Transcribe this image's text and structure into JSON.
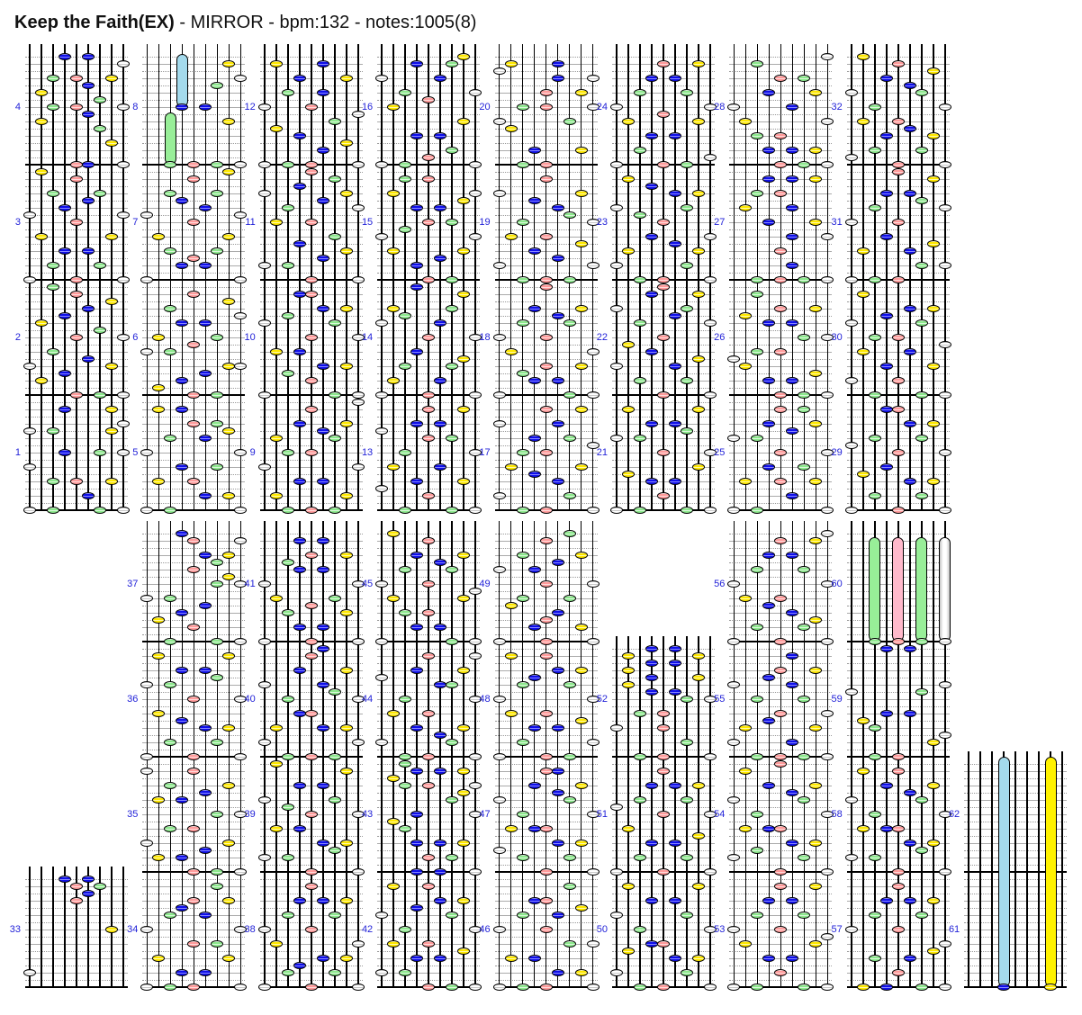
{
  "title": {
    "song": "Keep the Faith(EX)",
    "rest": " - MIRROR - bpm:132 - notes:1005(8)"
  },
  "stats": {
    "mode": "MIRROR",
    "bpm": "132",
    "total_notes": "1005",
    "long_notes": "8"
  },
  "palette": {
    "note_blue": "#1010e8",
    "note_green": "#8de88d",
    "note_red": "#ff9c9c",
    "note_yellow": "#ffe800",
    "note_white": "#ffffff",
    "hold_blue": "#a4daec",
    "hold_green": "#98ee98",
    "hold_red": "#ffb9cb",
    "hold_yellow": "#fff200",
    "hold_white": "#f4f4f4",
    "measure_label_blue": "#2222d8",
    "grid_gray": "#ababab",
    "grid_dot": "#9a9a9a"
  },
  "lane_colors": {
    "1": "white",
    "2": "yellow",
    "3": "green",
    "4": "blue",
    "5": "red",
    "6": "blue",
    "7": "green",
    "8": "yellow",
    "9": "white"
  },
  "charts": [
    {
      "slot": 0,
      "half": "top",
      "measures": [
        {
          "n": 1,
          "notes": "1:0 3:0 7:0 9:0 6:2 3:4 5:4 8:4 1:6 4:8 7:8 9:8 1:11 3:11 8:11 9:12 4:14 8:14"
        },
        {
          "n": 2,
          "notes": "5:0 7:0 9:0 2:2 4:3 1:4 8:4 6:5 3:6 5:8 9:8 7:9 2:10 4:11 6:12 8:13 5:14 3:15"
        },
        {
          "n": 3,
          "notes": "1:0 5:0 9:0 3:2 7:2 4:4 6:4 2:6 8:6 5:8 1:9 9:9 4:10 6:11 3:12 7:12 5:14 2:15"
        },
        {
          "n": 4,
          "notes": "5:0 6:0 9:0 8:3 7:5 2:6 6:7 3:8 5:8 9:8 7:9 2:10 6:11 3:12 5:12 8:12 9:14 4:15 6:15"
        }
      ]
    },
    {
      "slot": 1,
      "half": "top",
      "measures": [
        {
          "n": 5,
          "notes": "1:0 3:0 9:0 6:2 8:2 2:4 5:4 4:6 7:6 1:8 9:8 3:10 6:10 8:11 5:12 7:12 2:14 4:14"
        },
        {
          "n": 6,
          "notes": "5:0 7:0 2:1 4:2 6:3 8:4 9:4 1:6 3:6 5:7 2:8 7:8 4:10 6:10 9:11 3:12 8:13 5:14"
        },
        {
          "n": 7,
          "notes": "1:0 9:0 4:2 6:2 5:3 3:4 7:4 2:6 8:6 5:8 1:9 9:9 6:10 4:11 3:12 7:12 5:14 8:15"
        },
        {
          "n": 8,
          "notes": "5:0 7:0 9:0 8:6 6:8 7:11 9:12 8:14"
        }
      ]
    },
    {
      "slot": 2,
      "half": "top",
      "measures": [
        {
          "n": 9,
          "notes": "3:0 5:0 7:0 2:2 8:2 4:4 6:4 1:6 9:6 3:8 5:8 2:10 7:10 6:11 4:12 8:12 5:14 9:15"
        },
        {
          "n": 10,
          "notes": "1:0 7:0 9:0 5:2 3:3 6:4 8:4 2:6 4:6 5:8 9:8 1:10 7:10 3:11 6:12 8:12 4:14 5:14"
        },
        {
          "n": 11,
          "notes": "5:0 9:0 1:2 3:2 6:3 8:4 4:5 7:6 2:8 5:8 3:10 9:10 6:11 1:12 8:12 4:13 7:14 5:15"
        },
        {
          "n": 12,
          "notes": "1:0 3:0 5:0 9:0 6:2 8:3 4:4 2:5 7:6 9:7 1:8 5:8 3:10 6:10 4:12 8:12 2:14 6:14"
        }
      ]
    },
    {
      "slot": 3,
      "half": "top",
      "measures": [
        {
          "n": 13,
          "notes": "3:0 7:0 9:0 5:2 1:3 4:4 8:4 2:6 6:6 3:8 9:8 5:10 7:10 1:11 4:12 6:12 5:14 8:14"
        },
        {
          "n": 14,
          "notes": "1:0 5:0 9:0 2:2 6:2 3:4 7:4 8:5 4:6 5:8 9:8 1:10 6:10 3:11 2:12 7:12 8:14 4:15"
        },
        {
          "n": 15,
          "notes": "5:0 7:0 4:2 6:3 2:4 8:4 1:6 9:6 3:7 5:8 7:8 4:10 6:10 8:11 2:12 9:12 3:14 5:14"
        },
        {
          "n": 16,
          "notes": "1:0 3:0 9:0 5:1 7:2 4:4 6:4 8:6 2:8 5:9 3:10 9:10 1:12 6:12 4:14 7:14 8:15"
        }
      ]
    },
    {
      "slot": 4,
      "half": "top",
      "measures": [
        {
          "n": 17,
          "notes": "3:0 5:0 9:0 1:2 7:2 6:4 4:5 2:6 8:6 3:8 5:8 9:9 4:10 7:10 1:12 6:12 5:14 8:14"
        },
        {
          "n": 18,
          "notes": "1:0 7:0 9:0 4:2 6:2 3:3 5:4 8:4 2:6 9:6 1:8 5:8 3:10 7:10 6:11 4:12 8:12 5:15"
        },
        {
          "n": 19,
          "notes": "3:0 5:0 7:0 1:2 9:2 6:3 4:4 8:5 2:6 5:6 3:8 9:8 7:9 6:10 4:11 1:12 8:12 5:14"
        },
        {
          "n": 20,
          "notes": "3:0 5:0 4:2 8:2 2:5 1:6 7:6 3:8 5:8 9:8 8:10 5:10 6:12 9:12 1:13 2:14 6:14"
        }
      ]
    },
    {
      "slot": 5,
      "half": "top",
      "measures": [
        {
          "n": 21,
          "notes": "1:0 3:0 7:0 9:0 5:2 4:4 6:4 2:5 8:6 5:8 9:8 1:10 3:10 7:11 4:12 6:12 2:14 8:14"
        },
        {
          "n": 22,
          "notes": "5:0 9:0 3:2 7:2 1:4 6:4 8:5 4:6 2:7 5:8 3:10 9:10 6:11 1:12 7:12 4:14 8:14 5:15"
        },
        {
          "n": 23,
          "notes": "3:0 5:0 9:0 1:2 7:2 2:4 8:4 6:5 4:6 9:6 5:8 3:9 1:10 7:10 6:12 8:12 4:13 2:14"
        },
        {
          "n": 24,
          "notes": "1:0 5:0 7:0 9:1 3:2 4:4 6:4 2:6 8:6 5:7 1:8 9:8 3:10 7:10 4:12 6:12 5:14 8:14"
        }
      ]
    },
    {
      "slot": 6,
      "half": "top",
      "measures": [
        {
          "n": 25,
          "notes": "1:0 3:0 9:0 6:2 2:4 5:4 8:4 4:6 7:6 5:8 9:8 1:10 3:10 6:11 4:12 8:12 5:14 7:14"
        },
        {
          "n": 26,
          "notes": "5:0 7:0 9:0 4:2 6:2 8:3 2:4 1:5 3:6 5:6 7:8 9:8 4:10 6:10 2:11 5:12 8:12 3:14"
        },
        {
          "n": 27,
          "notes": "3:0 5:0 7:0 9:0 6:2 5:4 6:6 9:6 4:8 8:8 2:10 6:10 3:12 5:12 4:14 6:14 8:14"
        },
        {
          "n": 28,
          "notes": "5:0 7:0 9:0 4:2 6:2 8:2 3:4 5:4 2:6 9:6 1:8 6:8 4:10 8:10 5:12 7:12 3:14 9:15"
        }
      ]
    },
    {
      "slot": 7,
      "half": "top",
      "measures": [
        {
          "n": 29,
          "notes": "1:0 5:0 9:0 3:2 7:2 6:4 8:4 2:5 4:6 5:8 9:8 1:9 3:10 7:10 6:12 8:12 4:14 5:14"
        },
        {
          "n": 30,
          "notes": "3:0 7:0 9:0 1:2 5:2 4:4 8:4 2:6 6:6 9:7 3:8 5:8 1:10 7:10 4:11 6:12 8:12 2:14"
        },
        {
          "n": 31,
          "notes": "1:0 3:0 5:0 7:2 9:2 2:4 6:4 8:5 4:6 1:8 5:8 3:10 9:10 7:11 4:12 6:12 8:14 5:15"
        },
        {
          "n": 32,
          "notes": "5:0 9:0 1:1 3:2 7:2 4:4 8:4 6:5 2:6 5:6 3:8 9:8 1:10 7:10 6:11 4:12 8:13 5:14 2:15"
        }
      ]
    },
    {
      "slot": 0,
      "half": "bottom",
      "measures": [
        {
          "n": 33,
          "notes": "1:2 8:8 5:12 6:13 5:14 7:14 4:15 6:15"
        }
      ]
    },
    {
      "slot": 1,
      "half": "bottom",
      "measures": [
        {
          "n": 34,
          "notes": "1:0 3:0 5:0 9:0 4:2 6:2 2:4 8:4 5:6 7:6 1:8 9:8 3:10 6:10 4:11 5:12 8:12 7:14"
        },
        {
          "n": 35,
          "notes": "5:0 7:0 9:0 2:2 4:2 6:3 1:4 8:4 3:6 5:6 7:8 9:8 2:10 4:10 6:11 3:12 8:12 1:14 5:14"
        },
        {
          "n": 36,
          "notes": "1:0 5:0 9:0 3:2 7:2 6:4 8:4 4:5 2:6 5:8 9:8 1:10 3:10 7:11 4:12 6:12 2:14 8:14"
        },
        {
          "n": 37,
          "notes": "3:0 7:0 9:0 5:2 2:3 4:4 6:5 1:6 3:6 7:8 9:8 8:9 5:10 7:11 6:12 8:12 5:14 9:14 4:15"
        }
      ]
    },
    {
      "slot": 2,
      "half": "bottom",
      "measures": [
        {
          "n": 38,
          "notes": "1:0 5:0 9:0 3:2 7:2 4:3 6:4 8:4 2:6 9:6 1:8 5:8 3:10 7:10 4:12 6:12 8:12 5:14"
        },
        {
          "n": 39,
          "notes": "5:0 9:0 1:2 3:2 7:3 6:4 8:4 2:6 4:6 5:8 9:8 3:9 1:10 7:10 4:12 6:12 8:14 2:15"
        },
        {
          "n": 40,
          "notes": "3:0 5:0 7:0 1:2 9:2 6:4 2:4 8:4 4:6 5:6 3:8 9:8 7:9 1:10 6:10 4:12 8:12 5:14 6:15"
        },
        {
          "n": 41,
          "notes": "1:0 5:0 9:0 4:2 6:2 3:4 8:4 5:5 2:6 7:6 1:8 9:8 4:10 6:10 3:11 5:12 8:12 4:14 6:14"
        }
      ]
    },
    {
      "slot": 3,
      "half": "bottom",
      "measures": [
        {
          "n": 42,
          "notes": "5:0 7:0 9:0 1:2 3:2 4:4 6:4 8:5 2:6 5:6 3:8 9:8 1:10 7:10 4:11 6:12 8:12 2:14 5:14"
        },
        {
          "n": 43,
          "notes": "4:0 6:0 9:0 5:2 7:2 4:4 6:4 8:4 3:6 2:7 4:8 9:8 7:10 8:11 3:12 5:12 9:12 2:13 4:14 6:14 8:14 3:15"
        },
        {
          "n": 44,
          "notes": "3:0 5:0 9:0 1:2 7:2 6:3 4:4 8:4 2:6 5:6 3:8 9:8 6:10 7:10 1:11 4:12 8:12 5:14 9:14"
        },
        {
          "n": 45,
          "notes": "1:0 7:0 9:0 4:2 6:2 3:4 5:4 2:6 8:6 9:7 1:8 5:8 3:10 7:10 6:11 4:12 8:12 5:14 2:15"
        }
      ]
    },
    {
      "slot": 4,
      "half": "bottom",
      "measures": [
        {
          "n": 46,
          "notes": "1:0 3:0 5:0 9:0 6:2 8:2 2:4 4:4 7:6 9:6 1:8 5:8 3:10 6:10 8:11 4:12 5:12 7:14"
        },
        {
          "n": 47,
          "notes": "5:0 9:0 3:2 7:2 1:3 6:4 8:4 2:6 4:6 5:6 3:8 9:8 1:10 7:10 6:11 4:12 8:12 5:14 6:14"
        },
        {
          "n": 48,
          "notes": "1:0 5:0 7:0 3:2 9:2 6:4 4:4 8:5 2:6 5:6 1:8 9:8 3:10 7:10 4:11 6:12 8:12 2:14 5:14"
        },
        {
          "n": 49,
          "notes": "1:0 5:0 9:0 4:2 8:2 5:3 6:4 2:5 3:6 7:6 5:8 9:8 1:10 4:10 6:11 3:12 8:12 5:14 7:15"
        }
      ]
    },
    {
      "slot": 5,
      "half": "bottom",
      "measures": [
        {
          "n": 50,
          "notes": "3:0 5:0 9:0 1:2 7:2 6:4 8:4 2:5 4:6 5:6 3:8 9:8 1:10 7:10 6:12 4:12 2:14 8:14"
        },
        {
          "n": 51,
          "notes": "1:0 5:0 9:0 3:2 7:2 4:4 6:4 8:5 2:6 5:8 9:8 1:9 3:10 7:10 4:12 6:12 8:12 5:14"
        },
        {
          "n": 52,
          "notes": "3:0 5:0 9:0 7:2 1:4 5:4 3:6 5:6 9:8 7:8 4:9 6:9 2:10 4:11 8:11 2:12 4:13 6:13 2:14 8:14 4:15 6:15"
        }
      ]
    },
    {
      "slot": 6,
      "half": "bottom",
      "measures": [
        {
          "n": 53,
          "notes": "1:0 3:0 7:0 9:0 5:2 6:4 4:4 2:6 8:6 9:7 1:8 5:8 3:10 7:10 4:12 6:12 8:14 5:14"
        },
        {
          "n": 54,
          "notes": "5:0 9:0 1:2 7:2 3:3 6:4 8:4 2:6 4:6 5:6 3:8 9:8 1:10 7:10 6:11 4:12 8:12 2:14 5:15"
        },
        {
          "n": 55,
          "notes": "3:0 5:0 7:0 9:0 1:2 6:2 2:4 8:4 4:5 5:6 9:6 3:8 7:8 1:10 6:10 4:11 5:12 8:12 6:14"
        },
        {
          "n": 56,
          "notes": "1:0 5:0 9:0 3:2 7:2 8:3 6:4 4:5 2:6 5:6 1:8 9:8 3:10 7:10 6:12 4:12 5:14 8:14 9:15"
        }
      ]
    },
    {
      "slot": 7,
      "half": "bottom",
      "measures": [
        {
          "n": 57,
          "notes": "2:0 4:0 7:0 9:0 5:2 3:4 6:4 8:5 9:6 1:8 5:8 3:10 7:10 4:12 6:12 8:12 5:14"
        },
        {
          "n": 58,
          "notes": "5:0 9:0 1:2 3:2 7:3 6:4 8:4 2:6 4:6 5:6 3:8 9:8 1:10 7:10 6:11 4:12 8:12 2:14 5:14"
        },
        {
          "n": 59,
          "notes": "3:0 5:0 8:2 9:3 3:4 2:5 4:6 6:6 1:9 7:9 9:10 4:15 6:15"
        },
        {
          "n": 60,
          "notes": ""
        }
      ]
    },
    {
      "slot": 8,
      "half": "bottom",
      "measures": [
        {
          "n": 61,
          "notes": ""
        },
        {
          "n": 62,
          "notes": ""
        }
      ]
    }
  ],
  "holds": [
    {
      "slot": 1,
      "half": "top",
      "lane": 3,
      "mi": 3,
      "from": 0,
      "to": 7.25
    },
    {
      "slot": 1,
      "half": "top",
      "lane": 4,
      "mi": 3,
      "from": 8,
      "to": 15.4
    },
    {
      "slot": 7,
      "half": "bottom",
      "lane": 3,
      "mi": 3,
      "from": 0,
      "to": 14.5
    },
    {
      "slot": 7,
      "half": "bottom",
      "lane": 5,
      "mi": 3,
      "from": 0,
      "to": 14.5
    },
    {
      "slot": 7,
      "half": "bottom",
      "lane": 7,
      "mi": 3,
      "from": 0,
      "to": 14.5
    },
    {
      "slot": 7,
      "half": "bottom",
      "lane": 9,
      "mi": 3,
      "from": 0,
      "to": 14.5
    },
    {
      "slot": 8,
      "half": "bottom",
      "lane": 4,
      "mi": 0,
      "from": 0,
      "to": 32
    },
    {
      "slot": 8,
      "half": "bottom",
      "lane": 8,
      "mi": 0,
      "from": 0,
      "to": 32
    }
  ]
}
